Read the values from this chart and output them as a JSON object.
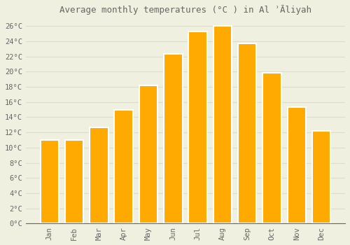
{
  "title": "Average monthly temperatures (°C ) in Al ʾĀliyah",
  "months": [
    "Jan",
    "Feb",
    "Mar",
    "Apr",
    "May",
    "Jun",
    "Jul",
    "Aug",
    "Sep",
    "Oct",
    "Nov",
    "Dec"
  ],
  "values": [
    11.0,
    11.0,
    12.7,
    15.0,
    18.2,
    22.3,
    25.3,
    26.0,
    23.7,
    19.8,
    15.3,
    12.2
  ],
  "bar_color": "#FFAA00",
  "bar_edge_color": "#FFFFFF",
  "background_color": "#F0F0E0",
  "grid_color": "#DDDDCC",
  "text_color": "#666666",
  "ylim": [
    0,
    27
  ],
  "ytick_values": [
    0,
    2,
    4,
    6,
    8,
    10,
    12,
    14,
    16,
    18,
    20,
    22,
    24,
    26
  ],
  "font_family": "monospace",
  "title_fontsize": 9,
  "tick_fontsize": 7.5
}
